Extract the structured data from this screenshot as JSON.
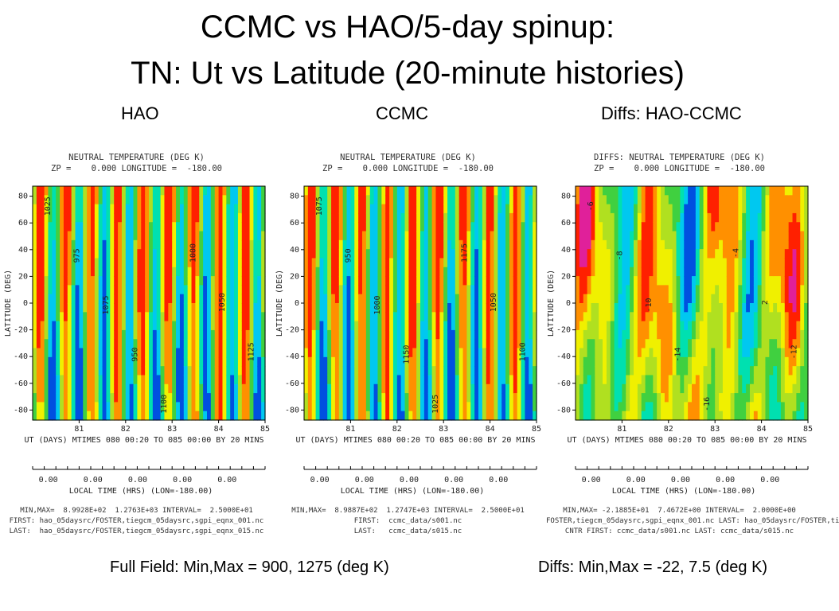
{
  "slide": {
    "title_line1": "CCMC vs HAO/5-day spinup:",
    "title_line2": "TN: Ut vs Latitude (20-minute histories)",
    "col_headers": [
      "HAO",
      "CCMC",
      "Diffs: HAO-CCMC"
    ],
    "caption_left": "Full Field: Min,Max = 900, 1275 (deg K)",
    "caption_right": "Diffs: Min,Max = -22, 7.5 (deg K)"
  },
  "panels": [
    {
      "title1": "NEUTRAL TEMPERATURE (DEG K)",
      "title2": "ZP =    0.000 LONGITUDE =  -180.00",
      "minmax": "MIN,MAX=  8.9928E+02  1.2763E+03 INTERVAL=  2.5000E+01",
      "first": "FIRST: hao_05daysrc/FOSTER,tiegcm_05daysrc,sgpi_eqnx_001.nc",
      "last": "LAST:  hao_05daysrc/FOSTER,tiegcm_05daysrc,sgpi_eqnx_015.nc"
    },
    {
      "title1": "NEUTRAL TEMPERATURE (DEG K)",
      "title2": "ZP =    0.000 LONGITUDE =  -180.00",
      "minmax": "MIN,MAX=  8.9887E+02  1.2747E+03 INTERVAL=  2.5000E+01",
      "first": "FIRST:  ccmc_data/s001.nc",
      "last": "LAST:   ccmc_data/s015.nc"
    },
    {
      "title1": "DIFFS: NEUTRAL TEMPERATURE (DEG K)",
      "title2": "ZP =    0.000 LONGITUDE =  -180.00",
      "minmax": "MIN,MAX= -2.1885E+01  7.4672E+00 INTERVAL=  2.0000E+00",
      "first": "FOSTER,tiegcm_05daysrc,sgpi_eqnx_001.nc LAST: hao_05daysrc/FOSTER,ti",
      "last": "CNTR FIRST: ccmc_data/s001.nc LAST: ccmc_data/s015.nc"
    }
  ],
  "chart_data": [
    {
      "type": "heatmap",
      "title": "NEUTRAL TEMPERATURE (DEG K)",
      "ylabel": "LATITUDE (DEG)",
      "xlabel": "UT (DAYS) MTIMES 080 00:20 TO 085 00:00 BY   20 MINS",
      "x2label": "LOCAL TIME (HRS) (LON=-180.00)",
      "xlim": [
        80,
        85
      ],
      "ylim": [
        -87.5,
        87.5
      ],
      "x_ticks": [
        81,
        82,
        83,
        84,
        85
      ],
      "y_ticks": [
        80,
        60,
        40,
        20,
        0,
        -20,
        -40,
        -60,
        -80
      ],
      "lt_ticks": [
        "0.00",
        "0.00",
        "0.00",
        "0.00",
        "0.00"
      ],
      "zmin": 899.28,
      "zmax": 1276.3,
      "interval": 25,
      "contour_labels": [
        "1025",
        "975",
        "1075",
        "950",
        "1100",
        "1000",
        "1050",
        "1125"
      ],
      "colormap": [
        "#0050e0",
        "#00c8f0",
        "#00e0b0",
        "#40d040",
        "#b0e020",
        "#f0f000",
        "#ff9000",
        "#ff2000"
      ]
    },
    {
      "type": "heatmap",
      "title": "NEUTRAL TEMPERATURE (DEG K)",
      "ylabel": "LATITUDE (DEG)",
      "xlabel": "UT (DAYS) MTIMES 080 00:20 TO 085 00:00 BY   20 MINS",
      "x2label": "LOCAL TIME (HRS) (LON=-180.00)",
      "xlim": [
        80,
        85
      ],
      "ylim": [
        -87.5,
        87.5
      ],
      "x_ticks": [
        81,
        82,
        83,
        84,
        85
      ],
      "y_ticks": [
        80,
        60,
        40,
        20,
        0,
        -20,
        -40,
        -60,
        -80
      ],
      "lt_ticks": [
        "0.00",
        "0.00",
        "0.00",
        "0.00",
        "0.00"
      ],
      "zmin": 898.87,
      "zmax": 1274.7,
      "interval": 25,
      "contour_labels": [
        "1075",
        "950",
        "1000",
        "1150",
        "1025",
        "1175",
        "1050",
        "1100"
      ],
      "colormap": [
        "#0050e0",
        "#00c8f0",
        "#00e0b0",
        "#40d040",
        "#b0e020",
        "#f0f000",
        "#ff9000",
        "#ff2000"
      ]
    },
    {
      "type": "heatmap",
      "title": "DIFFS: NEUTRAL TEMPERATURE (DEG K)",
      "ylabel": "LATITUDE (DEG)",
      "xlabel": "UT (DAYS) MTIMES 080 00:20 TO 085 00:00 BY   20 MINS",
      "x2label": "LOCAL TIME (HRS) (LON=-180.00)",
      "xlim": [
        80,
        85
      ],
      "ylim": [
        -87.5,
        87.5
      ],
      "x_ticks": [
        81,
        82,
        83,
        84,
        85
      ],
      "y_ticks": [
        80,
        60,
        40,
        20,
        0,
        -20,
        -40,
        -60,
        -80
      ],
      "lt_ticks": [
        "0.00",
        "0.00",
        "0.00",
        "0.00",
        "0.00"
      ],
      "zmin": -21.885,
      "zmax": 7.4672,
      "interval": 2,
      "contour_labels": [
        "-6",
        "-8",
        "-10",
        "-14",
        "-16",
        "-4",
        "2",
        "-12"
      ],
      "colormap": [
        "#0050e0",
        "#00c8f0",
        "#00e0b0",
        "#40d040",
        "#b0e020",
        "#f0f000",
        "#ff9000",
        "#ff2000",
        "#e0209a"
      ]
    }
  ]
}
